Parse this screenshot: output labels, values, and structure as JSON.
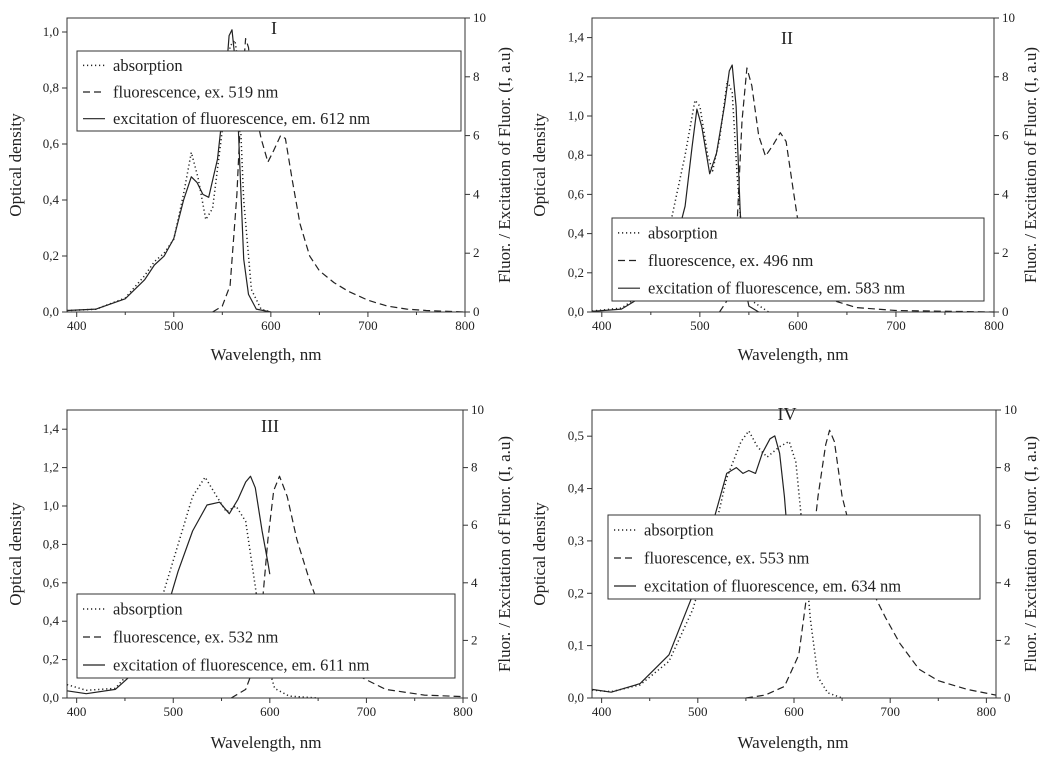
{
  "chart_data": [
    {
      "type": "line",
      "title": "I",
      "xlabel": "Wavelength, nm",
      "ylabel": "Optical density",
      "ylabel_right": "Fluor. / Excitation of Fluor. (I, a.u)",
      "xlim": [
        390,
        800
      ],
      "ylim": [
        0,
        1.05
      ],
      "ylim_right": [
        0,
        10
      ],
      "xticks": [
        "400",
        "500",
        "600",
        "700",
        "800"
      ],
      "yticks": [
        "0,0",
        "0,2",
        "0,4",
        "0,6",
        "0,8",
        "1,0"
      ],
      "yticks_right": [
        "0",
        "2",
        "4",
        "6",
        "8",
        "10"
      ],
      "legend": [
        "absorption",
        "fluorescence, ex. 519 nm",
        "excitation of fluorescence, em. 612 nm"
      ],
      "series": [
        {
          "name": "absorption",
          "axis": "left",
          "points": [
            [
              390,
              0.005
            ],
            [
              420,
              0.01
            ],
            [
              450,
              0.05
            ],
            [
              470,
              0.13
            ],
            [
              480,
              0.18
            ],
            [
              490,
              0.21
            ],
            [
              500,
              0.26
            ],
            [
              510,
              0.42
            ],
            [
              518,
              0.57
            ],
            [
              525,
              0.48
            ],
            [
              533,
              0.33
            ],
            [
              540,
              0.37
            ],
            [
              550,
              0.65
            ],
            [
              558,
              0.95
            ],
            [
              563,
              0.97
            ],
            [
              566,
              0.9
            ],
            [
              572,
              0.4
            ],
            [
              580,
              0.08
            ],
            [
              590,
              0.01
            ],
            [
              600,
              0.0
            ]
          ]
        },
        {
          "name": "fluorescence, ex. 519 nm",
          "axis": "right",
          "points": [
            [
              540,
              0.0
            ],
            [
              550,
              0.2
            ],
            [
              558,
              0.9
            ],
            [
              565,
              4.0
            ],
            [
              570,
              7.5
            ],
            [
              574,
              9.3
            ],
            [
              577,
              9.0
            ],
            [
              583,
              7.0
            ],
            [
              590,
              5.9
            ],
            [
              597,
              5.1
            ],
            [
              603,
              5.5
            ],
            [
              610,
              6.0
            ],
            [
              615,
              5.9
            ],
            [
              622,
              4.5
            ],
            [
              630,
              3.0
            ],
            [
              640,
              1.9
            ],
            [
              650,
              1.4
            ],
            [
              665,
              1.0
            ],
            [
              680,
              0.7
            ],
            [
              700,
              0.4
            ],
            [
              720,
              0.2
            ],
            [
              740,
              0.1
            ],
            [
              760,
              0.05
            ],
            [
              800,
              0.0
            ]
          ]
        },
        {
          "name": "excitation of fluorescence, em. 612 nm",
          "axis": "right",
          "points": [
            [
              390,
              0.05
            ],
            [
              420,
              0.1
            ],
            [
              450,
              0.45
            ],
            [
              470,
              1.1
            ],
            [
              480,
              1.6
            ],
            [
              490,
              1.9
            ],
            [
              500,
              2.5
            ],
            [
              510,
              3.8
            ],
            [
              518,
              4.6
            ],
            [
              524,
              4.4
            ],
            [
              530,
              4.0
            ],
            [
              536,
              3.9
            ],
            [
              545,
              5.2
            ],
            [
              552,
              7.3
            ],
            [
              557,
              9.4
            ],
            [
              560,
              9.6
            ],
            [
              564,
              8.3
            ],
            [
              568,
              5.0
            ],
            [
              572,
              1.8
            ],
            [
              577,
              0.6
            ],
            [
              585,
              0.1
            ],
            [
              600,
              0.0
            ]
          ]
        }
      ]
    },
    {
      "type": "line",
      "title": "II",
      "xlabel": "Wavelength, nm",
      "ylabel": "Optical density",
      "ylabel_right": "Fluor. / Excitation of Fluor. (I, a.u)",
      "xlim": [
        390,
        800
      ],
      "ylim": [
        0,
        1.5
      ],
      "ylim_right": [
        0,
        10
      ],
      "xticks": [
        "400",
        "500",
        "600",
        "700",
        "800"
      ],
      "yticks": [
        "0,0",
        "0,2",
        "0,4",
        "0,6",
        "0,8",
        "1,0",
        "1,2",
        "1,4"
      ],
      "yticks_right": [
        "0",
        "2",
        "4",
        "6",
        "8",
        "10"
      ],
      "legend": [
        "absorption",
        "fluorescence, ex. 496 nm",
        "excitation of fluorescence, em. 583 nm"
      ],
      "series": [
        {
          "name": "absorption",
          "axis": "left",
          "points": [
            [
              390,
              0.005
            ],
            [
              420,
              0.02
            ],
            [
              450,
              0.12
            ],
            [
              470,
              0.45
            ],
            [
              485,
              0.8
            ],
            [
              495,
              1.08
            ],
            [
              500,
              1.05
            ],
            [
              508,
              0.8
            ],
            [
              513,
              0.72
            ],
            [
              520,
              0.88
            ],
            [
              528,
              1.18
            ],
            [
              533,
              1.12
            ],
            [
              538,
              0.7
            ],
            [
              545,
              0.25
            ],
            [
              555,
              0.05
            ],
            [
              570,
              0.0
            ]
          ]
        },
        {
          "name": "fluorescence, ex. 496 nm",
          "axis": "right",
          "points": [
            [
              520,
              0.0
            ],
            [
              530,
              0.5
            ],
            [
              538,
              3.0
            ],
            [
              543,
              6.5
            ],
            [
              548,
              8.3
            ],
            [
              553,
              7.7
            ],
            [
              560,
              6.0
            ],
            [
              567,
              5.3
            ],
            [
              575,
              5.7
            ],
            [
              582,
              6.1
            ],
            [
              588,
              5.8
            ],
            [
              595,
              4.2
            ],
            [
              605,
              2.0
            ],
            [
              620,
              0.8
            ],
            [
              640,
              0.35
            ],
            [
              660,
              0.15
            ],
            [
              700,
              0.05
            ],
            [
              800,
              0.0
            ]
          ]
        },
        {
          "name": "excitation of fluorescence, em. 583 nm",
          "axis": "right",
          "points": [
            [
              390,
              0.02
            ],
            [
              420,
              0.1
            ],
            [
              450,
              0.7
            ],
            [
              465,
              1.6
            ],
            [
              475,
              2.3
            ],
            [
              485,
              3.6
            ],
            [
              492,
              5.6
            ],
            [
              497,
              6.9
            ],
            [
              502,
              6.3
            ],
            [
              510,
              4.7
            ],
            [
              517,
              5.4
            ],
            [
              525,
              7.0
            ],
            [
              530,
              8.2
            ],
            [
              533,
              8.4
            ],
            [
              537,
              7.0
            ],
            [
              541,
              3.5
            ],
            [
              545,
              1.0
            ],
            [
              550,
              0.2
            ],
            [
              560,
              0.0
            ]
          ]
        }
      ]
    },
    {
      "type": "line",
      "title": "III",
      "xlabel": "Wavelength, nm",
      "ylabel": "Optical density",
      "ylabel_right": "Fluor. / Excitation of Fluor. (I, a.u)",
      "xlim": [
        390,
        800
      ],
      "ylim": [
        0,
        1.5
      ],
      "ylim_right": [
        0,
        10
      ],
      "xticks": [
        "400",
        "500",
        "600",
        "700",
        "800"
      ],
      "yticks": [
        "0,0",
        "0,2",
        "0,4",
        "0,6",
        "0,8",
        "1,0",
        "1,2",
        "1,4"
      ],
      "yticks_right": [
        "0",
        "2",
        "4",
        "6",
        "8",
        "10"
      ],
      "legend": [
        "absorption",
        "fluorescence, ex. 532 nm",
        "excitation of fluorescence, em. 611 nm"
      ],
      "series": [
        {
          "name": "absorption",
          "axis": "left",
          "points": [
            [
              390,
              0.07
            ],
            [
              410,
              0.04
            ],
            [
              440,
              0.05
            ],
            [
              470,
              0.22
            ],
            [
              490,
              0.55
            ],
            [
              505,
              0.8
            ],
            [
              520,
              1.05
            ],
            [
              533,
              1.15
            ],
            [
              545,
              1.05
            ],
            [
              555,
              0.97
            ],
            [
              565,
              1.0
            ],
            [
              575,
              0.92
            ],
            [
              585,
              0.58
            ],
            [
              595,
              0.22
            ],
            [
              605,
              0.05
            ],
            [
              620,
              0.01
            ],
            [
              650,
              0.0
            ]
          ]
        },
        {
          "name": "fluorescence, ex. 532 nm",
          "axis": "right",
          "points": [
            [
              560,
              0.0
            ],
            [
              575,
              0.3
            ],
            [
              585,
              1.2
            ],
            [
              592,
              3.2
            ],
            [
              598,
              5.5
            ],
            [
              604,
              7.2
            ],
            [
              610,
              7.7
            ],
            [
              618,
              7.0
            ],
            [
              628,
              5.5
            ],
            [
              640,
              4.2
            ],
            [
              655,
              2.8
            ],
            [
              670,
              1.6
            ],
            [
              690,
              0.8
            ],
            [
              720,
              0.3
            ],
            [
              760,
              0.1
            ],
            [
              800,
              0.05
            ]
          ]
        },
        {
          "name": "excitation of fluorescence, em. 611 nm",
          "axis": "right",
          "points": [
            [
              390,
              0.25
            ],
            [
              410,
              0.15
            ],
            [
              440,
              0.3
            ],
            [
              470,
              1.2
            ],
            [
              490,
              2.7
            ],
            [
              505,
              4.4
            ],
            [
              520,
              5.8
            ],
            [
              535,
              6.7
            ],
            [
              548,
              6.8
            ],
            [
              558,
              6.4
            ],
            [
              567,
              6.9
            ],
            [
              575,
              7.5
            ],
            [
              580,
              7.7
            ],
            [
              585,
              7.3
            ],
            [
              592,
              5.8
            ],
            [
              598,
              4.7
            ],
            [
              600,
              4.3
            ]
          ]
        }
      ]
    },
    {
      "type": "line",
      "title": "IV",
      "xlabel": "Wavelength, nm",
      "ylabel": "Optical density",
      "ylabel_right": "Fluor. / Excitation of Fluor. (I, a.u)",
      "xlim": [
        390,
        810
      ],
      "ylim": [
        0,
        0.55
      ],
      "ylim_right": [
        0,
        10
      ],
      "xticks": [
        "400",
        "500",
        "600",
        "700",
        "800"
      ],
      "yticks": [
        "0,0",
        "0,1",
        "0,2",
        "0,3",
        "0,4",
        "0,5"
      ],
      "yticks_right": [
        "0",
        "2",
        "4",
        "6",
        "8",
        "10"
      ],
      "legend": [
        "absorption",
        "fluorescence, ex. 553 nm",
        "excitation of fluorescence, em. 634 nm"
      ],
      "series": [
        {
          "name": "absorption",
          "axis": "left",
          "points": [
            [
              390,
              0.015
            ],
            [
              410,
              0.012
            ],
            [
              440,
              0.025
            ],
            [
              470,
              0.07
            ],
            [
              495,
              0.17
            ],
            [
              515,
              0.3
            ],
            [
              530,
              0.42
            ],
            [
              545,
              0.49
            ],
            [
              553,
              0.51
            ],
            [
              562,
              0.48
            ],
            [
              572,
              0.46
            ],
            [
              585,
              0.48
            ],
            [
              595,
              0.49
            ],
            [
              602,
              0.45
            ],
            [
              610,
              0.3
            ],
            [
              617,
              0.15
            ],
            [
              625,
              0.04
            ],
            [
              635,
              0.01
            ],
            [
              650,
              0.0
            ]
          ]
        },
        {
          "name": "fluorescence, ex. 553 nm",
          "axis": "right",
          "points": [
            [
              550,
              0.0
            ],
            [
              570,
              0.1
            ],
            [
              590,
              0.4
            ],
            [
              605,
              1.5
            ],
            [
              615,
              4.0
            ],
            [
              625,
              7.0
            ],
            [
              633,
              8.8
            ],
            [
              637,
              9.3
            ],
            [
              642,
              8.9
            ],
            [
              650,
              7.0
            ],
            [
              665,
              5.0
            ],
            [
              680,
              3.8
            ],
            [
              695,
              2.8
            ],
            [
              710,
              1.9
            ],
            [
              730,
              1.0
            ],
            [
              750,
              0.6
            ],
            [
              780,
              0.3
            ],
            [
              810,
              0.1
            ]
          ]
        },
        {
          "name": "excitation of fluorescence, em. 634 nm",
          "axis": "right",
          "points": [
            [
              390,
              0.3
            ],
            [
              410,
              0.2
            ],
            [
              440,
              0.5
            ],
            [
              470,
              1.5
            ],
            [
              495,
              3.6
            ],
            [
              515,
              6.0
            ],
            [
              530,
              7.8
            ],
            [
              540,
              8.0
            ],
            [
              547,
              7.8
            ],
            [
              553,
              7.9
            ],
            [
              560,
              7.8
            ],
            [
              567,
              8.5
            ],
            [
              575,
              9.0
            ],
            [
              580,
              9.1
            ],
            [
              585,
              8.5
            ],
            [
              590,
              7.0
            ],
            [
              596,
              4.5
            ],
            [
              600,
              3.8
            ]
          ]
        }
      ]
    }
  ]
}
